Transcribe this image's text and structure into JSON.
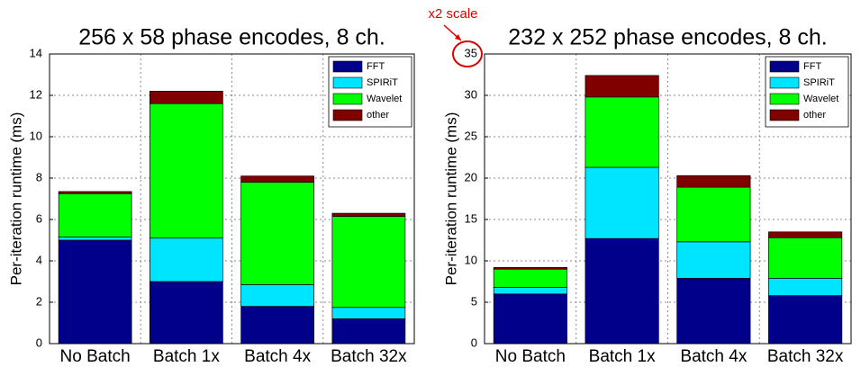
{
  "chart_data": [
    {
      "type": "bar",
      "stacked": true,
      "title": "256 x 58 phase encodes, 8 ch.",
      "y_label": "Per-iteration runtime (ms)",
      "categories": [
        "No Batch",
        "Batch 1x",
        "Batch 4x",
        "Batch 32x"
      ],
      "series": [
        {
          "name": "FFT",
          "color": "#00008b",
          "values": [
            5.0,
            3.0,
            1.8,
            1.2
          ]
        },
        {
          "name": "SPIRiT",
          "color": "#00e5ff",
          "values": [
            0.15,
            2.1,
            1.05,
            0.55
          ]
        },
        {
          "name": "Wavelet",
          "color": "#00ff00",
          "values": [
            2.1,
            6.5,
            4.95,
            4.4
          ]
        },
        {
          "name": "other",
          "color": "#800000",
          "values": [
            0.1,
            0.6,
            0.3,
            0.15
          ]
        }
      ],
      "ylim": [
        0,
        14
      ],
      "yticks": [
        0,
        2,
        4,
        6,
        8,
        10,
        12,
        14
      ],
      "grid": true,
      "legend": "upper right"
    },
    {
      "type": "bar",
      "stacked": true,
      "title": "232 x 252 phase encodes, 8 ch.",
      "y_label": "Per-iteration runtime (ms)",
      "annotation": "x2 scale",
      "categories": [
        "No Batch",
        "Batch 1x",
        "Batch 4x",
        "Batch 32x"
      ],
      "series": [
        {
          "name": "FFT",
          "color": "#00008b",
          "values": [
            6.0,
            12.7,
            7.9,
            5.8
          ]
        },
        {
          "name": "SPIRiT",
          "color": "#00e5ff",
          "values": [
            0.8,
            8.6,
            4.4,
            2.1
          ]
        },
        {
          "name": "Wavelet",
          "color": "#00ff00",
          "values": [
            2.2,
            8.5,
            6.6,
            4.9
          ]
        },
        {
          "name": "other",
          "color": "#800000",
          "values": [
            0.2,
            2.6,
            1.4,
            0.7
          ]
        }
      ],
      "ylim": [
        0,
        35
      ],
      "yticks": [
        0,
        5,
        10,
        15,
        20,
        25,
        30,
        35
      ],
      "grid": true,
      "legend": "upper right"
    }
  ]
}
